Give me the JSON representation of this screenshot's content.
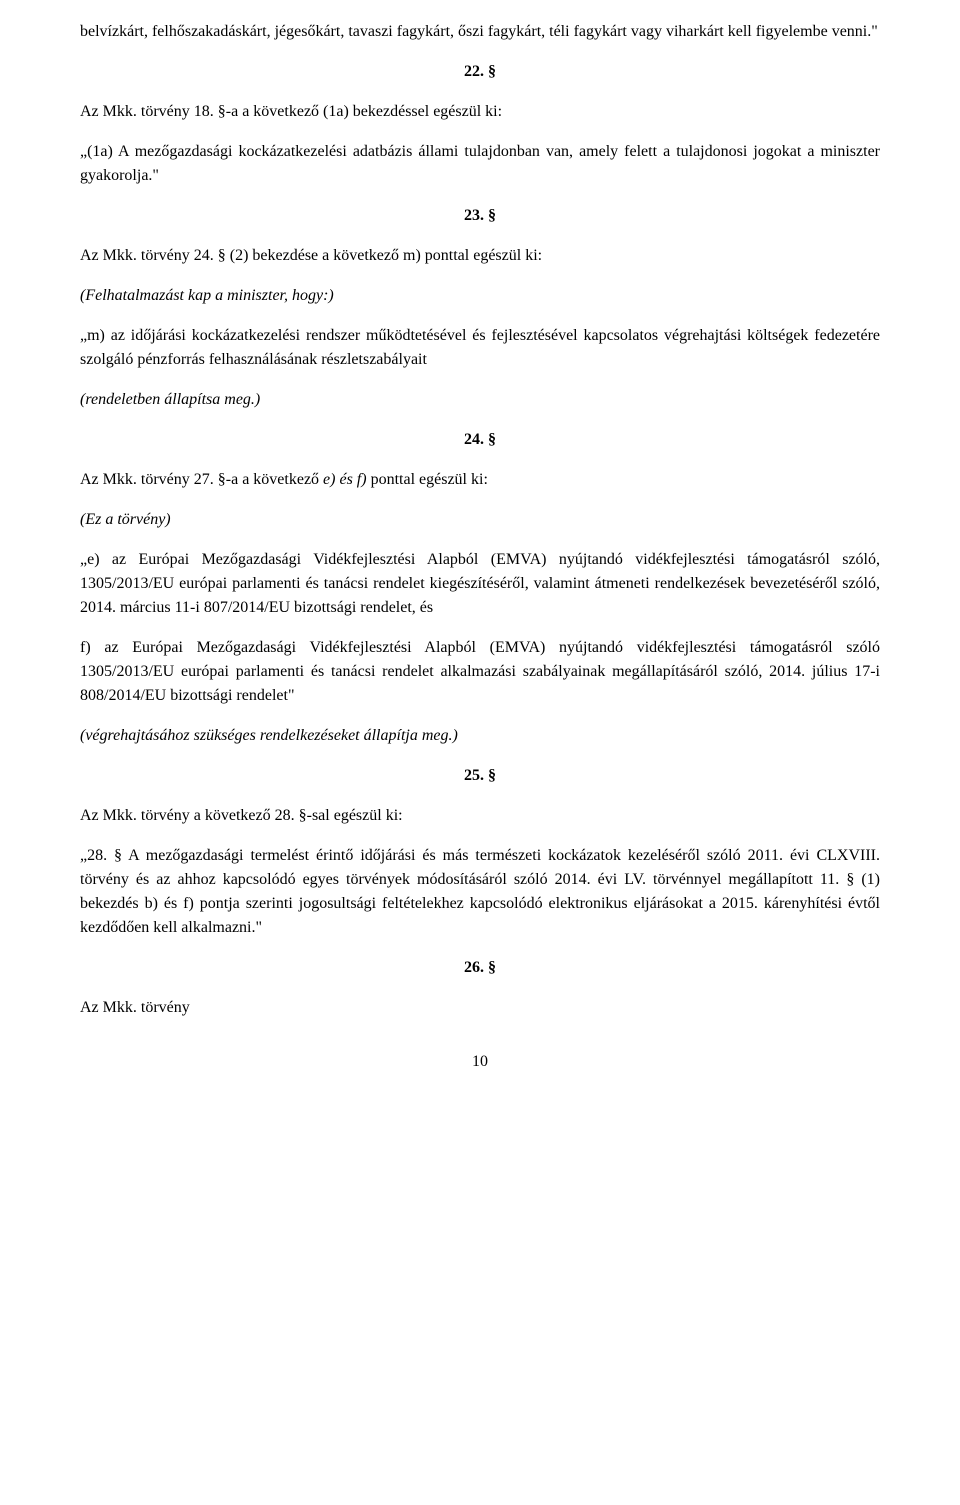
{
  "para1": "belvízkárt, felhőszakadáskárt, jégesőkárt, tavaszi fagykárt, őszi fagykárt, téli fagykárt vagy viharkárt kell figyelembe venni.\"",
  "section22": "22. §",
  "para2": "Az Mkk. törvény 18. §-a a következő (1a) bekezdéssel egészül ki:",
  "para3": "„(1a) A mezőgazdasági kockázatkezelési adatbázis állami tulajdonban van, amely felett a tulajdonosi jogokat a miniszter gyakorolja.\"",
  "section23": "23. §",
  "para4": "Az Mkk. törvény 24. § (2) bekezdése a következő m) ponttal egészül ki:",
  "para5": "(Felhatalmazást kap a miniszter, hogy:)",
  "para6": "„m) az időjárási kockázatkezelési rendszer működtetésével és fejlesztésével kapcsolatos végrehajtási költségek fedezetére szolgáló pénzforrás felhasználásának részletszabályait",
  "para7": "(rendeletben állapítsa meg.)",
  "section24": "24. §",
  "para8_part1": "Az Mkk. törvény 27. §-a a következő ",
  "para8_part2": "e) és f)",
  "para8_part3": " ponttal egészül ki:",
  "para9": "(Ez a törvény)",
  "para10": "„e) az Európai Mezőgazdasági Vidékfejlesztési Alapból (EMVA) nyújtandó vidékfejlesztési támogatásról szóló, 1305/2013/EU európai parlamenti és tanácsi rendelet kiegészítéséről, valamint átmeneti rendelkezések bevezetéséről szóló, 2014. március 11-i 807/2014/EU bizottsági rendelet, és",
  "para11": "f) az Európai Mezőgazdasági Vidékfejlesztési Alapból (EMVA) nyújtandó vidékfejlesztési támogatásról szóló 1305/2013/EU európai parlamenti és tanácsi rendelet alkalmazási szabályainak megállapításáról szóló, 2014. július 17-i 808/2014/EU bizottsági rendelet\"",
  "para12": "(végrehajtásához szükséges rendelkezéseket állapítja meg.)",
  "section25": "25. §",
  "para13": "Az Mkk. törvény a következő 28. §-sal egészül ki:",
  "para14": "„28. § A mezőgazdasági termelést érintő időjárási és más természeti kockázatok kezeléséről szóló 2011. évi CLXVIII. törvény és az ahhoz kapcsolódó egyes törvények módosításáról szóló 2014. évi LV. törvénnyel megállapított 11. § (1) bekezdés b) és f) pontja szerinti jogosultsági feltételekhez kapcsolódó elektronikus eljárásokat a 2015. kárenyhítési évtől kezdődően kell alkalmazni.\"",
  "section26": "26. §",
  "para15": "Az Mkk. törvény",
  "pageNumber": "10"
}
